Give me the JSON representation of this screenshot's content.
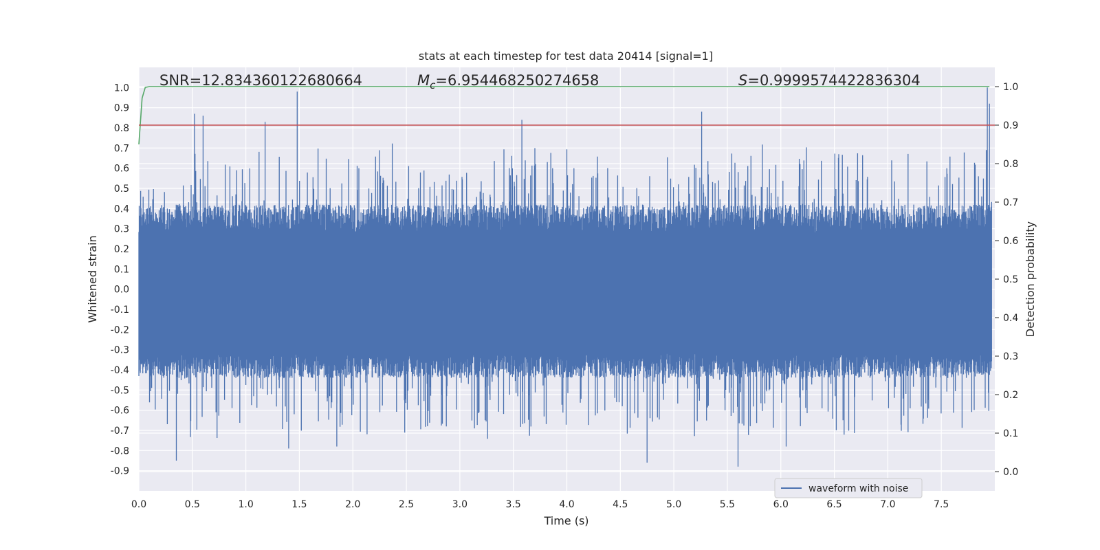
{
  "chart_data": {
    "type": "line",
    "title": "stats at each timestep for test data 20414 [signal=1]",
    "xlabel": "Time (s)",
    "ylabel": "Whitened strain",
    "y2label": "Detection probability",
    "xlim": [
      0.0,
      8.0
    ],
    "ylim": [
      -1.0,
      1.1
    ],
    "y2lim": [
      -0.05,
      1.05
    ],
    "x_ticks": [
      "0.0",
      "0.5",
      "1.0",
      "1.5",
      "2.0",
      "2.5",
      "3.0",
      "3.5",
      "4.0",
      "4.5",
      "5.0",
      "5.5",
      "6.0",
      "6.5",
      "7.0",
      "7.5"
    ],
    "y_ticks": [
      "1.0",
      "0.9",
      "0.8",
      "0.7",
      "0.6",
      "0.5",
      "0.4",
      "0.3",
      "0.2",
      "0.1",
      "0.0",
      "-0.1",
      "-0.2",
      "-0.3",
      "-0.4",
      "-0.5",
      "-0.6",
      "-0.7",
      "-0.8",
      "-0.9"
    ],
    "y2_ticks": [
      "1.0",
      "0.9",
      "0.8",
      "0.7",
      "0.6",
      "0.5",
      "0.4",
      "0.3",
      "0.2",
      "0.1",
      "0.0"
    ],
    "grid": true,
    "legend_position": "bottom-right",
    "annotations": {
      "snr": "SNR=12.834360122680664",
      "mc_symbol": "M",
      "mc_subscript": "c",
      "mc_value": "=6.954468250274658",
      "s_symbol": "S",
      "s_value": "=0.9999574422836304"
    },
    "series": [
      {
        "name": "waveform with noise",
        "color": "#4c72b0",
        "axis": "left",
        "note_peaks": [
          [
            0.52,
            0.87
          ],
          [
            0.6,
            0.86
          ],
          [
            1.18,
            0.83
          ],
          [
            1.48,
            0.98
          ],
          [
            3.58,
            0.84
          ],
          [
            5.26,
            0.88
          ],
          [
            7.93,
            1.0
          ],
          [
            7.95,
            0.92
          ],
          [
            0.35,
            -0.85
          ],
          [
            4.75,
            -0.86
          ],
          [
            5.6,
            -0.88
          ],
          [
            1.85,
            -0.78
          ],
          [
            1.4,
            -0.79
          ],
          [
            6.05,
            -0.78
          ]
        ]
      },
      {
        "color": "#55a868",
        "axis": "right",
        "x": [
          0.0,
          0.03,
          0.06,
          0.1,
          1.0,
          7.95
        ],
        "values": [
          0.85,
          0.97,
          0.998,
          1.0,
          1.0,
          1.0
        ]
      },
      {
        "color": "#c44e52",
        "axis": "right",
        "x": [
          0.0,
          8.0
        ],
        "values": [
          0.9,
          0.9
        ]
      }
    ]
  }
}
